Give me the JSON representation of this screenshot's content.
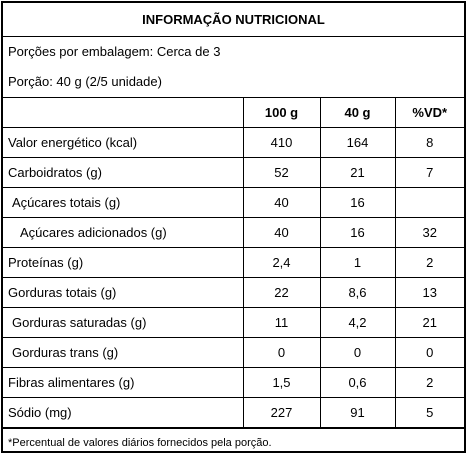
{
  "title": "INFORMAÇÃO NUTRICIONAL",
  "servings_per_package": "Porções por embalagem: Cerca de 3",
  "serving_size": "Porção: 40 g (2/5 unidade)",
  "columns": [
    "",
    "100 g",
    "40 g",
    "%VD*"
  ],
  "rows": [
    {
      "name": "Valor energético (kcal)",
      "per100": "410",
      "per40": "164",
      "vd": "8"
    },
    {
      "name": "Carboidratos (g)",
      "per100": "52",
      "per40": "21",
      "vd": "7"
    },
    {
      "name": "Açúcares totais (g)",
      "per100": "40",
      "per40": "16",
      "vd": ""
    },
    {
      "name": "Açúcares adicionados (g)",
      "per100": "40",
      "per40": "16",
      "vd": "32"
    },
    {
      "name": "Proteínas (g)",
      "per100": "2,4",
      "per40": "1",
      "vd": "2"
    },
    {
      "name": "Gorduras totais (g)",
      "per100": "22",
      "per40": "8,6",
      "vd": "13"
    },
    {
      "name": "Gorduras saturadas (g)",
      "per100": "11",
      "per40": "4,2",
      "vd": "21"
    },
    {
      "name": "Gorduras trans (g)",
      "per100": "0",
      "per40": "0",
      "vd": "0"
    },
    {
      "name": "Fibras alimentares (g)",
      "per100": "1,5",
      "per40": "0,6",
      "vd": "2"
    },
    {
      "name": "Sódio (mg)",
      "per100": "227",
      "per40": "91",
      "vd": "5"
    }
  ],
  "footnote": "*Percentual de valores diários fornecidos pela porção."
}
